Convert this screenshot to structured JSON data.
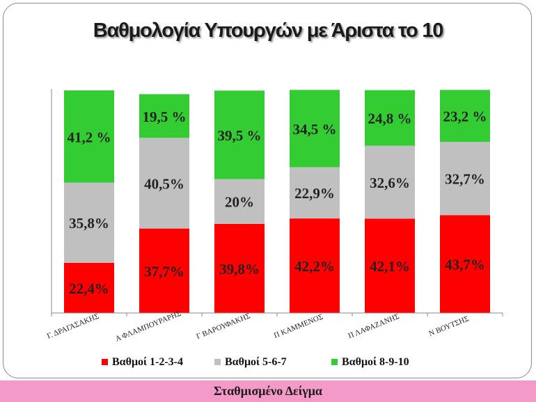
{
  "title": "Βαθμολογία Υπουργών με Άριστα το 10",
  "footer": "Σταθμισμένο Δείγμα",
  "chart_data": {
    "type": "bar",
    "stacked": true,
    "categories": [
      "Γ. ΔΡΑΓΑΣΑΚΗΣ",
      "Α ΦΛΑΜΠΟΥΡΑΡΗΣ",
      "Γ ΒΑΡΟΥΦΑΚΗΣ",
      "Π ΚΑΜΜΕΝΟΣ",
      "Π ΛΑΦΑΖΑΝΗΣ",
      "Ν ΒΟΥΤΣΗΣ"
    ],
    "series": [
      {
        "name": "Βαθμοί 1-2-3-4",
        "color": "#ff0000",
        "values": [
          22.4,
          37.7,
          39.8,
          42.2,
          42.1,
          43.7
        ],
        "labels": [
          "22,4%",
          "37,7%",
          "39,8%",
          "42,2%",
          "42,1%",
          "43,7%"
        ]
      },
      {
        "name": "Βαθμοί 5-6-7",
        "color": "#c0c0c0",
        "values": [
          35.8,
          40.5,
          20,
          22.9,
          32.6,
          32.7
        ],
        "labels": [
          "35,8%",
          "40,5%",
          "20%",
          "22,9%",
          "32,6%",
          "32,7%"
        ]
      },
      {
        "name": "Βαθμοί 8-9-10",
        "color": "#33cc33",
        "values": [
          41.2,
          19.5,
          39.5,
          34.5,
          24.8,
          23.2
        ],
        "labels": [
          "41,2 %",
          "19,5 %",
          "39,5 %",
          "34,5 %",
          "24,8 %",
          "23,2 %"
        ]
      }
    ],
    "ylim": [
      0,
      100
    ],
    "grid": false,
    "legend_position": "bottom"
  }
}
